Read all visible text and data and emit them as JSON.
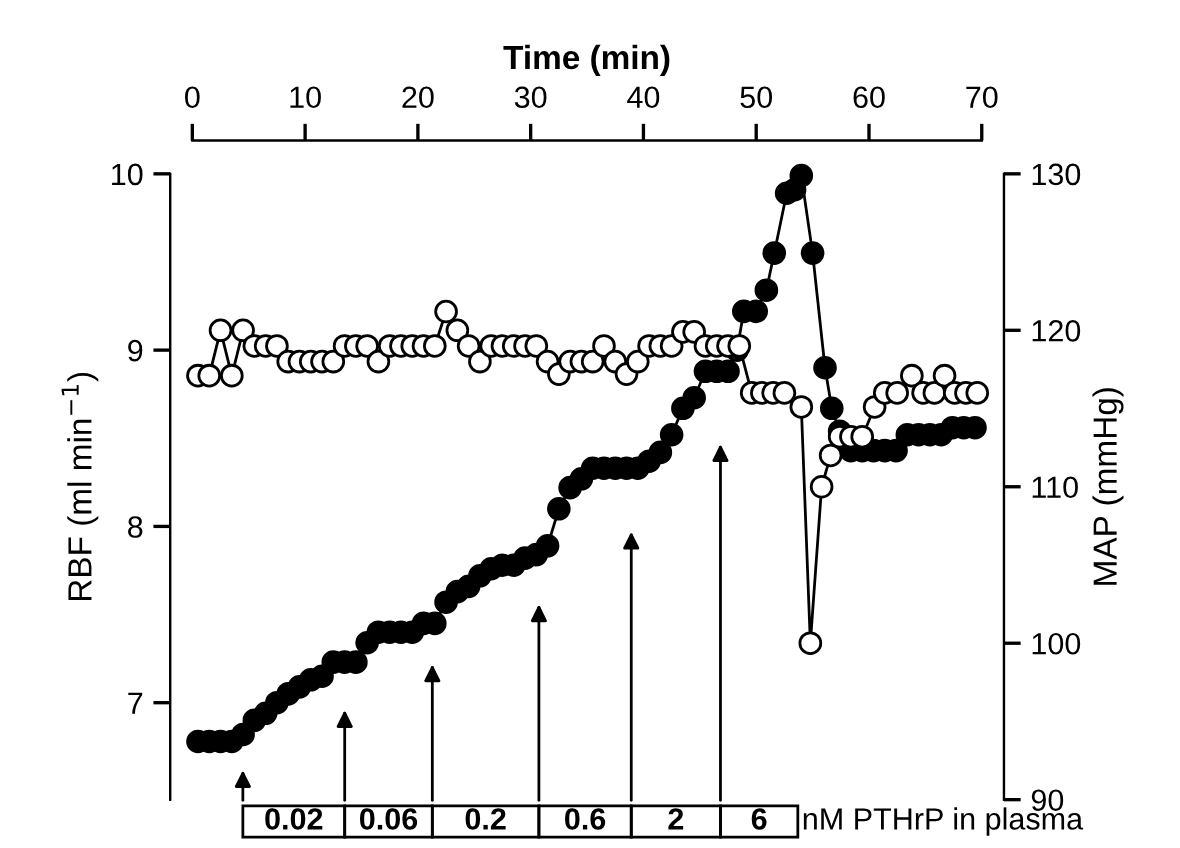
{
  "chart_data": {
    "type": "line",
    "xlabel": "Time (min)",
    "ylabel": "RBF (ml min$^{−1}$)",
    "y2label": "MAP (mmHg)",
    "xlim": [
      0,
      70
    ],
    "xticks": [
      0,
      10,
      20,
      30,
      40,
      50,
      60,
      70
    ],
    "ylim": [
      6.45,
      10
    ],
    "yticks": [
      7,
      8,
      9,
      10
    ],
    "y2lim": [
      90,
      130
    ],
    "y2ticks": [
      90,
      100,
      110,
      120,
      130
    ],
    "marker": "circle",
    "grid": false,
    "legend": false,
    "series": [
      {
        "color": "#000000",
        "x": [
          0.5,
          1.5,
          2.5,
          3.5,
          4.5,
          5.5,
          6.5,
          7.5,
          8.5,
          9.5,
          10.5,
          11.5,
          12.5,
          13.5,
          14.5,
          15.5,
          16.5,
          17.5,
          18.5,
          19.5,
          20.5,
          21.5,
          22.5,
          23.5,
          24.5,
          25.5,
          26.5,
          27.5,
          28.5,
          29.5,
          30.5,
          31.5,
          32.5,
          33.5,
          34.5,
          35.5,
          36.5,
          37.5,
          38.5,
          39.5,
          40.5,
          41.5,
          42.5,
          43.5,
          44.5,
          45.5,
          46.5,
          47.5,
          48.3,
          48.9,
          50,
          50.9,
          51.6,
          52.7,
          53.4,
          54.0,
          55.0,
          56.1,
          56.7,
          57.4,
          58.4,
          59.4,
          60.4,
          61.4,
          62.4,
          63.4,
          64.4,
          65.4,
          66.4,
          67.4,
          68.4,
          69.4
        ],
        "values": [
          6.78,
          6.78,
          6.78,
          6.78,
          6.82,
          6.9,
          6.94,
          7.0,
          7.05,
          7.09,
          7.13,
          7.15,
          7.23,
          7.23,
          7.23,
          7.34,
          7.4,
          7.4,
          7.4,
          7.4,
          7.45,
          7.45,
          7.57,
          7.63,
          7.66,
          7.72,
          7.76,
          7.78,
          7.78,
          7.82,
          7.84,
          7.89,
          8.1,
          8.22,
          8.27,
          8.33,
          8.33,
          8.33,
          8.33,
          8.33,
          8.37,
          8.42,
          8.52,
          8.67,
          8.73,
          8.88,
          8.88,
          8.88,
          9.0,
          9.22,
          9.22,
          9.34,
          9.55,
          9.89,
          9.91,
          9.99,
          9.55,
          8.9,
          8.67,
          8.54,
          8.43,
          8.43,
          8.43,
          8.43,
          8.43,
          8.52,
          8.52,
          8.52,
          8.52,
          8.56,
          8.56,
          8.56
        ]
      },
      {
        "color": "#ffffff",
        "axis": "y2",
        "x": [
          0.5,
          1.5,
          2.5,
          3.5,
          4.5,
          5.5,
          6.5,
          7.5,
          8.5,
          9.5,
          10.5,
          11.5,
          12.5,
          13.5,
          14.5,
          15.5,
          16.5,
          17.5,
          18.5,
          19.5,
          20.5,
          21.5,
          22.5,
          23.5,
          24.5,
          25.5,
          26.5,
          27.5,
          28.5,
          29.5,
          30.5,
          31.5,
          32.5,
          33.5,
          34.5,
          35.5,
          36.5,
          37.5,
          38.5,
          39.5,
          40.5,
          41.5,
          42.5,
          43.5,
          44.5,
          45.5,
          46.5,
          47.5,
          48.5,
          49.6,
          50.5,
          51.5,
          52.5,
          54.0,
          54.8,
          55.8,
          56.6,
          57.4,
          58.4,
          59.4,
          60.5,
          61.4,
          62.5,
          63.8,
          64.8,
          65.8,
          66.7,
          67.6,
          68.6,
          69.6
        ],
        "values": [
          117.1,
          117.1,
          120.0,
          117.1,
          120.0,
          119,
          119,
          119,
          118,
          118,
          118,
          118,
          118,
          119,
          119,
          119,
          118,
          119,
          119,
          119,
          119,
          119,
          121.2,
          120,
          119,
          118,
          119,
          119,
          119,
          119,
          119,
          118,
          117.2,
          118,
          118,
          118,
          119,
          118,
          117.2,
          118,
          119,
          119,
          119,
          119.9,
          119.9,
          119,
          119,
          119,
          119,
          116,
          116,
          116,
          116,
          115.1,
          100.0,
          110,
          112,
          113.2,
          113.2,
          113.2,
          115.1,
          116,
          116,
          117.1,
          116,
          116,
          117.1,
          116,
          116,
          116
        ]
      }
    ],
    "annotations": [
      "0.02",
      "0.06",
      "0.2",
      "0.6",
      "2",
      "6",
      "nM PTHrP in plasma"
    ]
  }
}
